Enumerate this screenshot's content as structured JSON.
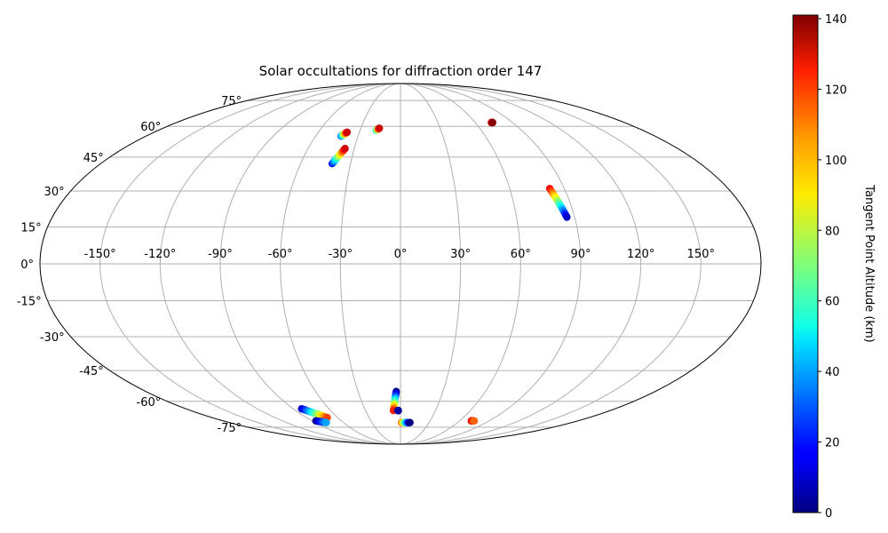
{
  "chart_data": {
    "type": "scatter",
    "projection": "mollweide",
    "title": "Solar occultations for diffraction order 147",
    "lon_ticks": [
      "-150°",
      "-120°",
      "-90°",
      "-60°",
      "-30°",
      "0°",
      "30°",
      "60°",
      "90°",
      "120°",
      "150°"
    ],
    "lon_tick_values": [
      -150,
      -120,
      -90,
      -60,
      -30,
      0,
      30,
      60,
      90,
      120,
      150
    ],
    "lat_ticks": [
      "75°",
      "60°",
      "45°",
      "30°",
      "15°",
      "0°",
      "-15°",
      "-30°",
      "-45°",
      "-60°",
      "-75°"
    ],
    "lat_tick_values": [
      75,
      60,
      45,
      30,
      15,
      0,
      -15,
      -30,
      -45,
      -60,
      -75
    ],
    "grid": true,
    "colorbar": {
      "label": "Tangent Point Altitude (km)",
      "min": 0,
      "max": 141,
      "ticks": [
        0,
        20,
        40,
        60,
        80,
        100,
        120,
        140
      ],
      "colormap": "jet"
    },
    "tracks": [
      {
        "lon_start": -42,
        "lat_start": 55,
        "lon_end": -39,
        "lat_end": 57,
        "alt_start": 30,
        "alt_end": 130
      },
      {
        "lon_start": -41,
        "lat_start": 42,
        "lon_end": -36,
        "lat_end": 49,
        "alt_start": 20,
        "alt_end": 130
      },
      {
        "lon_start": -18,
        "lat_start": 58,
        "lon_end": -16,
        "lat_end": 59,
        "alt_start": 50,
        "alt_end": 130
      },
      {
        "lon_start": 73,
        "lat_start": 62,
        "lon_end": 74,
        "lat_end": 62,
        "alt_start": 120,
        "alt_end": 140
      },
      {
        "lon_start": 82,
        "lat_start": 31,
        "lon_end": 86,
        "lat_end": 19,
        "alt_start": 125,
        "alt_end": 10
      },
      {
        "lon_start": -83,
        "lat_start": -64,
        "lon_end": -70,
        "lat_end": -69,
        "alt_start": 10,
        "alt_end": 115
      },
      {
        "lon_start": -86,
        "lat_start": -71,
        "lon_end": -78,
        "lat_end": -72,
        "alt_start": 0,
        "alt_end": 40
      },
      {
        "lon_start": -3,
        "lat_start": -55,
        "lon_end": -6,
        "lat_end": -65,
        "alt_start": 0,
        "alt_end": 120
      },
      {
        "lon_start": -2,
        "lat_start": -65,
        "lon_end": -2,
        "lat_end": -65,
        "alt_start": 5,
        "alt_end": 5
      },
      {
        "lon_start": 1,
        "lat_start": -72,
        "lon_end": 10,
        "lat_end": -72,
        "alt_start": 110,
        "alt_end": 0
      },
      {
        "lon_start": 72,
        "lat_start": -71,
        "lon_end": 75,
        "lat_end": -71,
        "alt_start": 130,
        "alt_end": 110
      }
    ]
  }
}
